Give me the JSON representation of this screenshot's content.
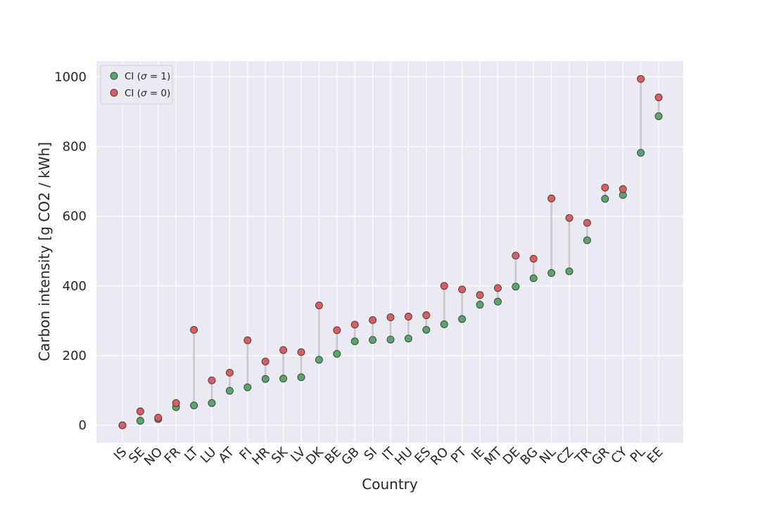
{
  "chart_data": {
    "type": "scatter",
    "xlabel": "Country",
    "ylabel": "Carbon intensity [g CO2 / kWh]",
    "ylim": [
      -50,
      1045
    ],
    "yticks": [
      0,
      200,
      400,
      600,
      800,
      1000
    ],
    "grid": true,
    "legend_position": "top-left",
    "categories": [
      "IS",
      "SE",
      "NO",
      "FR",
      "LT",
      "LU",
      "AT",
      "FI",
      "HR",
      "SK",
      "LV",
      "DK",
      "BE",
      "GB",
      "SI",
      "IT",
      "HU",
      "ES",
      "RO",
      "PT",
      "IE",
      "MT",
      "DE",
      "BG",
      "NL",
      "CZ",
      "TR",
      "GR",
      "CY",
      "PL",
      "EE"
    ],
    "series": [
      {
        "name": "CI (σ = 1)",
        "legend_label": "CI (",
        "legend_suffix": " = 1)",
        "color": "#55a868",
        "values": [
          0,
          13,
          18,
          52,
          57,
          64,
          99,
          109,
          133,
          134,
          138,
          188,
          205,
          241,
          245,
          246,
          249,
          274,
          290,
          305,
          346,
          355,
          398,
          422,
          437,
          442,
          531,
          650,
          661,
          782,
          887
        ]
      },
      {
        "name": "CI (σ = 0)",
        "legend_label": "CI (",
        "legend_suffix": " = 0)",
        "color": "#e05c5c",
        "values": [
          0,
          40,
          22,
          64,
          274,
          129,
          151,
          244,
          183,
          216,
          210,
          344,
          273,
          289,
          302,
          310,
          312,
          316,
          400,
          390,
          374,
          394,
          487,
          478,
          651,
          595,
          581,
          682,
          678,
          994,
          941
        ]
      }
    ]
  },
  "style": {
    "plot_background": "#eaeaf2",
    "grid_color": "#ffffff",
    "connector_color": "#c8c8c8",
    "marker_edge": "#3a3a3a"
  }
}
